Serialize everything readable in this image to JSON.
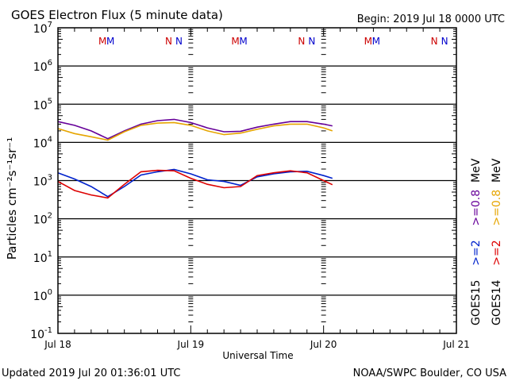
{
  "chart_data": {
    "type": "line",
    "title": "GOES Electron Flux (5 minute data)",
    "begin_label": "Begin: 2019 Jul 18 0000 UTC",
    "xlabel": "Universal Time",
    "ylabel": "Particles cm⁻²s⁻¹sr⁻¹",
    "yscale": "log",
    "ylim": [
      0.1,
      10000000
    ],
    "xlim_hours": [
      0,
      72
    ],
    "x_ticks": [
      "Jul 18",
      "Jul 19",
      "Jul 20",
      "Jul 21"
    ],
    "y_ticks": [
      {
        "base": "10",
        "exp": "7"
      },
      {
        "base": "10",
        "exp": "6"
      },
      {
        "base": "10",
        "exp": "5"
      },
      {
        "base": "10",
        "exp": "4"
      },
      {
        "base": "10",
        "exp": "3"
      },
      {
        "base": "10",
        "exp": "2"
      },
      {
        "base": "10",
        "exp": "1"
      },
      {
        "base": "10",
        "exp": "0"
      },
      {
        "base": "10",
        "exp": "-1"
      }
    ],
    "threshold": {
      "value": 1000,
      "style": "dashed"
    },
    "grid": true,
    "annotations": {
      "markers": [
        {
          "text": "M",
          "day": 0,
          "color": "#cc0000"
        },
        {
          "text": "M",
          "day": 0,
          "color": "#0000cc"
        },
        {
          "text": "N",
          "day": 0,
          "color": "#cc0000"
        },
        {
          "text": "N",
          "day": 0,
          "color": "#0000cc"
        },
        {
          "text": "M",
          "day": 1,
          "color": "#cc0000"
        },
        {
          "text": "M",
          "day": 1,
          "color": "#0000cc"
        },
        {
          "text": "N",
          "day": 1,
          "color": "#cc0000"
        },
        {
          "text": "N",
          "day": 1,
          "color": "#0000cc"
        },
        {
          "text": "M",
          "day": 2,
          "color": "#cc0000"
        },
        {
          "text": "M",
          "day": 2,
          "color": "#0000cc"
        },
        {
          "text": "N",
          "day": 2,
          "color": "#cc0000"
        },
        {
          "text": "N",
          "day": 2,
          "color": "#0000cc"
        }
      ]
    },
    "x_hours": [
      0,
      3,
      6,
      9,
      12,
      15,
      18,
      21,
      24,
      27,
      30,
      33,
      36,
      39,
      42,
      45,
      48,
      49.6
    ],
    "series": [
      {
        "name": "GOES15 >=0.8 MeV",
        "color": "#660099",
        "values": [
          35000,
          28000,
          20000,
          12500,
          20000,
          30000,
          37000,
          40000,
          33000,
          24000,
          19000,
          19500,
          25000,
          30000,
          35000,
          35000,
          30000,
          27000
        ]
      },
      {
        "name": "GOES14 >=0.8 MeV",
        "color": "#e6a500",
        "values": [
          23000,
          17000,
          14000,
          11500,
          19000,
          28000,
          32000,
          33000,
          28000,
          20000,
          16000,
          17500,
          22000,
          27000,
          30000,
          30000,
          24000,
          20000
        ]
      },
      {
        "name": "GOES15 >=2 MeV",
        "color": "#0022cc",
        "values": [
          1600,
          1100,
          700,
          380,
          700,
          1400,
          1700,
          1950,
          1500,
          1050,
          950,
          750,
          1250,
          1500,
          1700,
          1750,
          1350,
          1150
        ]
      },
      {
        "name": "GOES14 >=2 MeV",
        "color": "#dd0000",
        "values": [
          950,
          550,
          420,
          350,
          800,
          1700,
          1850,
          1800,
          1150,
          800,
          650,
          700,
          1350,
          1600,
          1800,
          1600,
          1000,
          780
        ]
      }
    ],
    "legend": {
      "placement": "right",
      "columns": [
        {
          "satellite": "GOES15",
          "low": ">=2",
          "low_color": "#0022cc",
          "high": ">=0.8",
          "high_color": "#660099",
          "unit": "MeV"
        },
        {
          "satellite": "GOES14",
          "low": ">=2",
          "low_color": "#dd0000",
          "high": ">=0.8",
          "high_color": "#e6a500",
          "unit": "MeV"
        }
      ]
    }
  },
  "footer": {
    "updated": "Updated 2019 Jul 20 01:36:01 UTC",
    "credit": "NOAA/SWPC Boulder, CO USA"
  }
}
